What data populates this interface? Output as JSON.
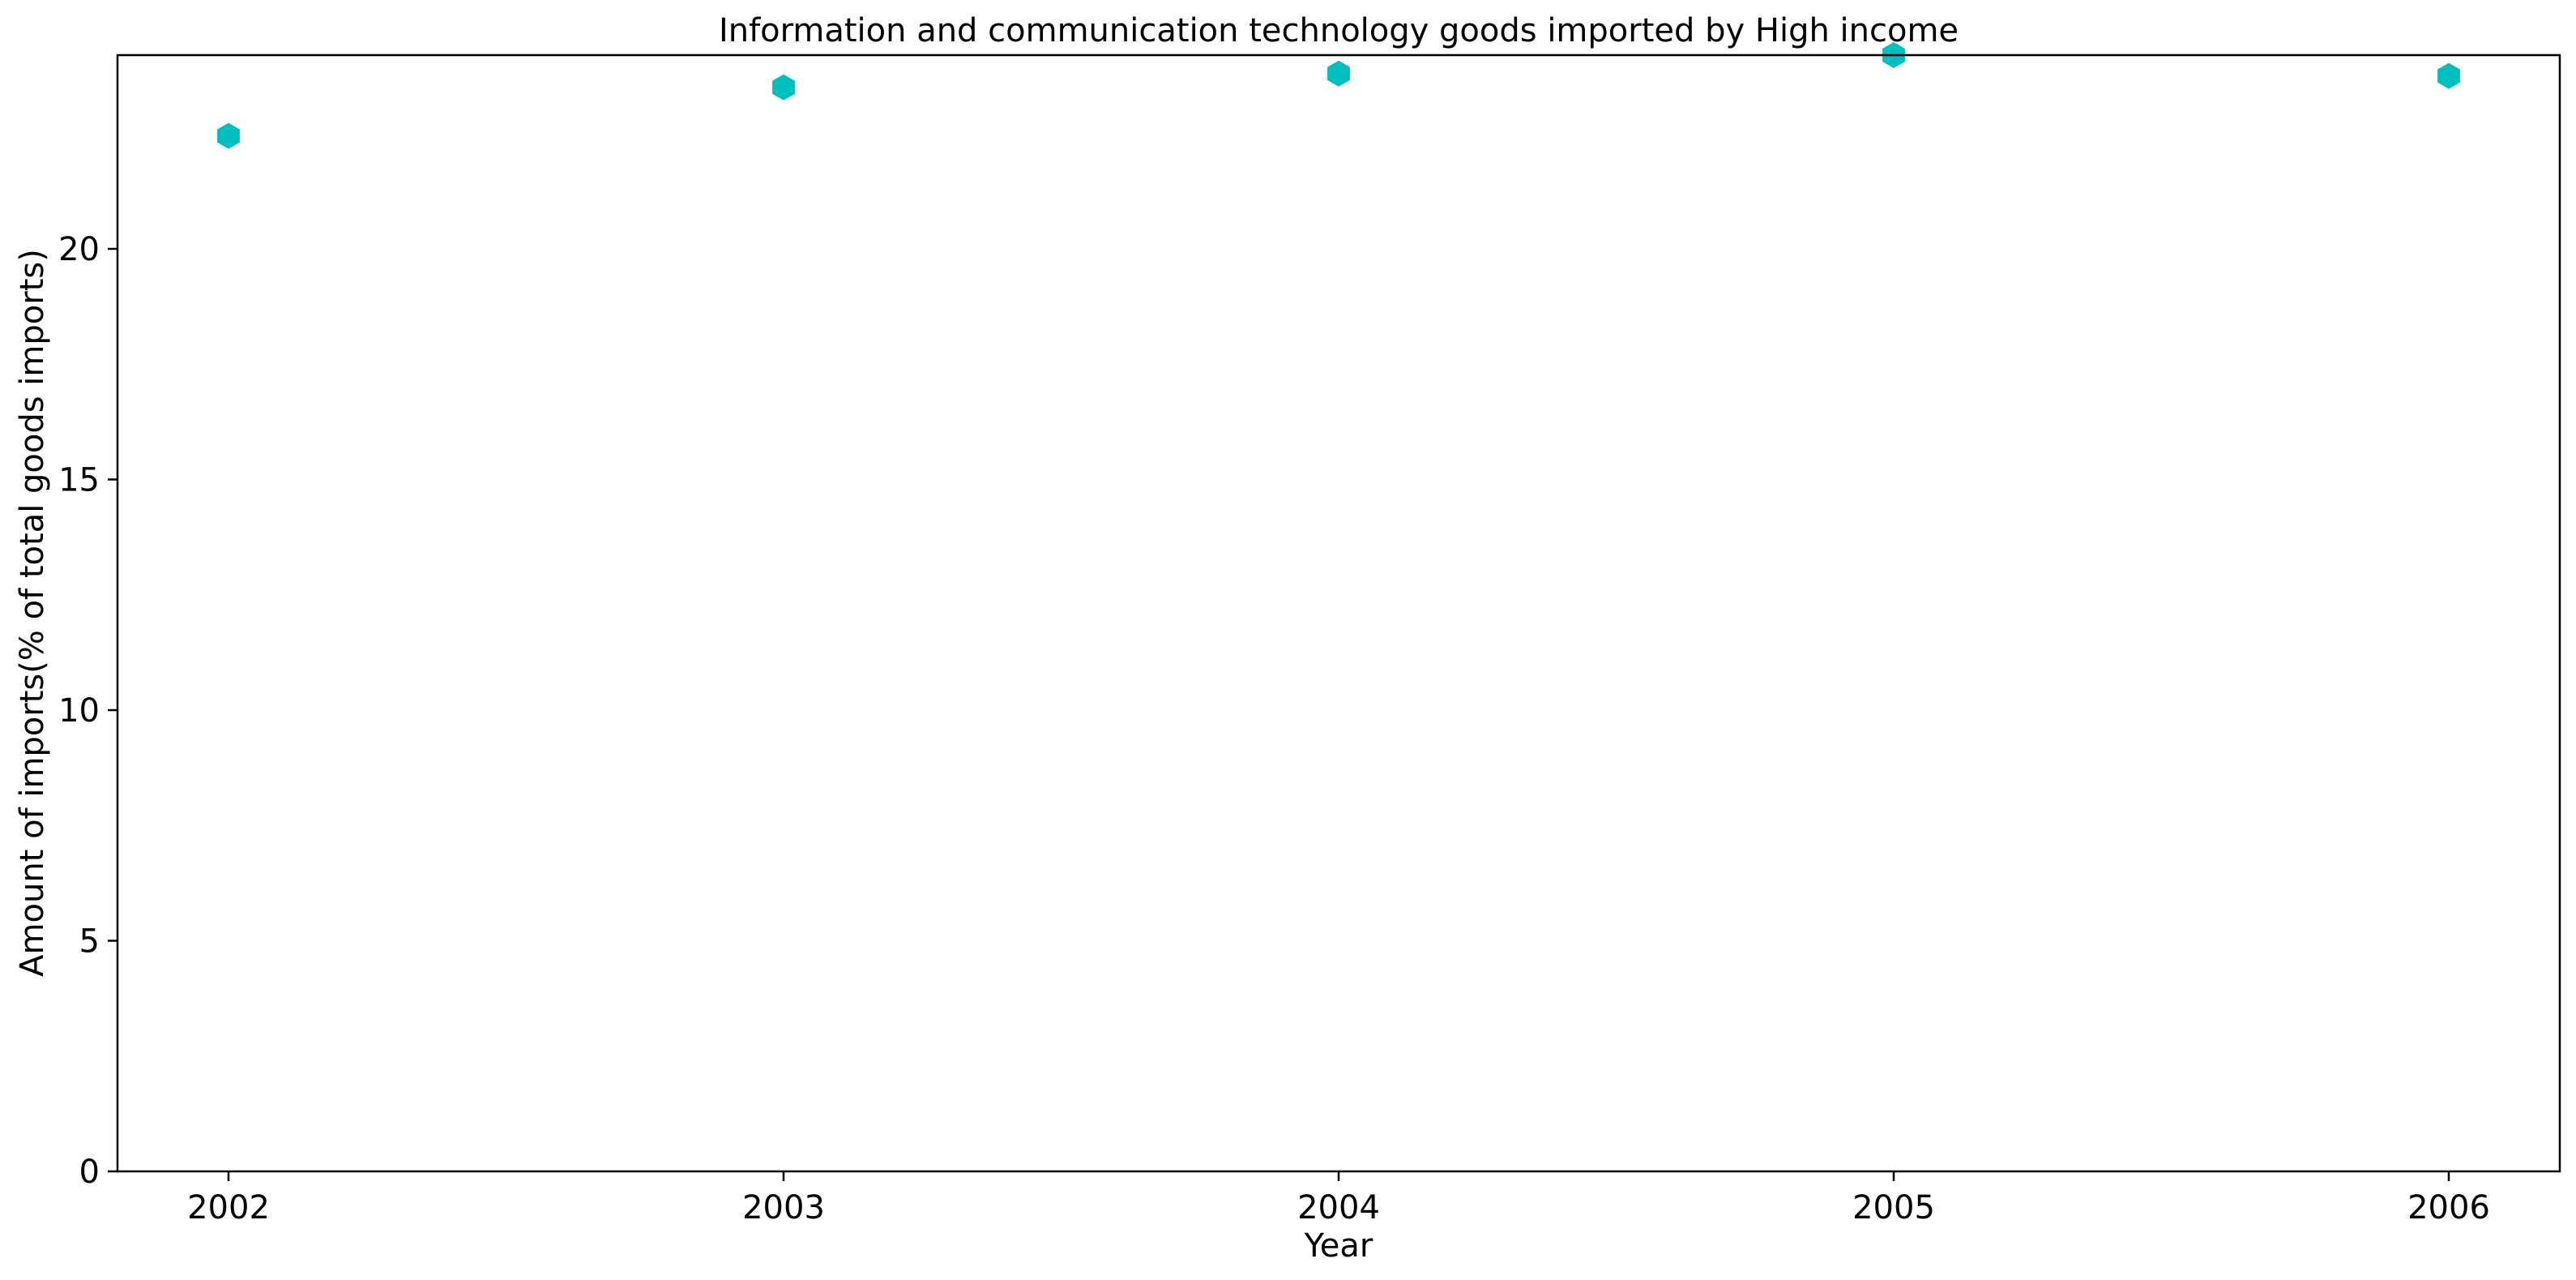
{
  "chart_data": {
    "type": "scatter",
    "title": "Information and communication technology goods imported by High income",
    "xlabel": "Year",
    "ylabel": "Amount of imports(% of total goods imports)",
    "x": [
      "2002",
      "2003",
      "2004",
      "2005",
      "2006"
    ],
    "series": [
      {
        "values": [
          22.45,
          23.5,
          23.8,
          24.2,
          23.75
        ],
        "color": "#00bfbf",
        "marker": "hexagon"
      }
    ],
    "x_ticks": [
      "2002",
      "2003",
      "2004",
      "2005",
      "2006"
    ],
    "y_ticks": [
      "0",
      "5",
      "10",
      "15",
      "20"
    ],
    "ylim": [
      0,
      24.2
    ],
    "xlim": [
      2001.8,
      2006.2
    ],
    "grid": false,
    "legend": "none"
  }
}
